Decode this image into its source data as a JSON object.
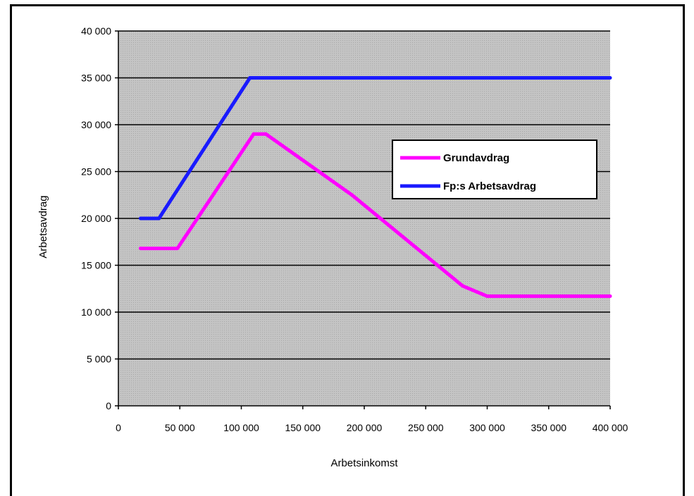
{
  "chart_data": {
    "type": "line",
    "title": "",
    "xlabel": "Arbetsinkomst",
    "ylabel": "Arbetsavdrag",
    "xlim": [
      0,
      400000
    ],
    "ylim": [
      0,
      40000
    ],
    "x_ticks": [
      0,
      50000,
      100000,
      150000,
      200000,
      250000,
      300000,
      350000,
      400000
    ],
    "x_tick_labels": [
      "0",
      "50 000",
      "100 000",
      "150 000",
      "200 000",
      "250 000",
      "300 000",
      "350 000",
      "400 000"
    ],
    "y_ticks": [
      0,
      5000,
      10000,
      15000,
      20000,
      25000,
      30000,
      35000,
      40000
    ],
    "y_tick_labels": [
      "0",
      "5 000",
      "10 000",
      "15 000",
      "20 000",
      "25 000",
      "30 000",
      "35 000",
      "40 000"
    ],
    "grid": "horizontal",
    "legend": "right-center",
    "series": [
      {
        "name": "Grundavdrag",
        "color": "#ff00ff",
        "points": [
          [
            18000,
            16800
          ],
          [
            48000,
            16800
          ],
          [
            110000,
            29000
          ],
          [
            120000,
            29000
          ],
          [
            190000,
            22500
          ],
          [
            280000,
            12800
          ],
          [
            300000,
            11700
          ],
          [
            400000,
            11700
          ]
        ]
      },
      {
        "name": "Fp:s Arbetsavdrag",
        "color": "#1a1aff",
        "points": [
          [
            18000,
            20000
          ],
          [
            33000,
            20000
          ],
          [
            107000,
            35000
          ],
          [
            400000,
            35000
          ]
        ]
      }
    ],
    "plot_background": "#c0c0c0"
  }
}
